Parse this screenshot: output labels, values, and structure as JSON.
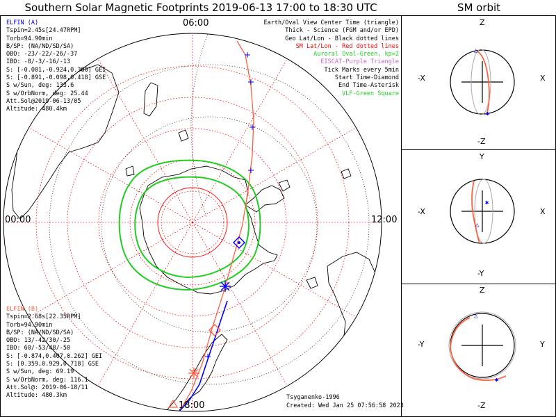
{
  "title": "Southern Solar Magnetic Footprints 2019-06-13 17:00 to 18:30 UTC",
  "orbit_title": "SM orbit",
  "colors": {
    "elfin_a": "#0000ff",
    "elfin_b": "#ff6040",
    "geo_grid": "#000000",
    "sm_grid": "#ff0000",
    "auroral_oval": "#22cc22",
    "eiscat": "#cc66cc",
    "vlf": "#22cc22"
  },
  "hour_labels": {
    "top": "06:00",
    "left": "00:00",
    "right": "12:00",
    "bottom": "18:00"
  },
  "elfin_a": {
    "name": "ELFIN (A)",
    "lines": [
      "Tspin=2.45s[24.47RPM]",
      "Torb=94.90min",
      "B/SP: (NA/ND/SD/SA)",
      "OBO: -23/-22/-26/-37",
      "IBO: -8/-3/-16/-13",
      "S: [-0.001,-0.924,0.380] GEI",
      "S: [-0.891,-0.098,0.418] GSE",
      "S w/Sun, deg: 133.6",
      "S w/OrbNorm, deg: 25.44",
      "Att.Sol@2019-06-13/05",
      "Altitude: 480.4km"
    ]
  },
  "elfin_b": {
    "name": "ELFIN (B)",
    "lines": [
      "Tspin=2.68s[22.35RPM]",
      "Torb=94.90min",
      "B/SP: (NA/ND/SD/SA)",
      "OBO: 13/-42/30/-25",
      "IBO: 60/-53/48/-50",
      "S: [-0.874,0.407,0.262] GEI",
      "S: [0.359,0.929,0.718] GSE",
      "S w/Sun, deg: 69.19",
      "S w/OrbNorm, deg: 116.1",
      "Att.Sol@: 2019-06-18/11",
      "Altitude: 480.3km"
    ]
  },
  "legend": [
    {
      "text": "Earth/Oval View Center Time (triangle)",
      "color": "#000000"
    },
    {
      "text": "Thick - Science (FGM and/or EPD)",
      "color": "#000000"
    },
    {
      "text": "Geo Lat/Lon - Black dotted lines",
      "color": "#000000"
    },
    {
      "text": "SM Lat/Lon - Red dotted lines",
      "color": "#ff0000"
    },
    {
      "text": "Auroral Oval-Green, kp=2",
      "color": "#22cc22"
    },
    {
      "text": "EISCAT-Purple Triangle",
      "color": "#cc66cc"
    },
    {
      "text": "Tick Marks every 5min",
      "color": "#000000"
    },
    {
      "text": "Start Time-Diamond",
      "color": "#000000"
    },
    {
      "text": "End Time-Asterisk",
      "color": "#000000"
    },
    {
      "text": "VLF-Green Square",
      "color": "#22cc22"
    }
  ],
  "credits": {
    "author": "Tsyganenko-1996",
    "created": "Created: Wed Jan 25 07:56:58 2023"
  },
  "orbit_panels": [
    {
      "name": "xz",
      "top": "Z",
      "bottom": "-Z",
      "left": "-X",
      "right": "X"
    },
    {
      "name": "xy",
      "top": "Y",
      "bottom": "-Y",
      "left": "-X",
      "right": "X"
    },
    {
      "name": "yz",
      "top": "Z",
      "bottom": "-Z",
      "left": "-Y",
      "right": "Y"
    }
  ]
}
